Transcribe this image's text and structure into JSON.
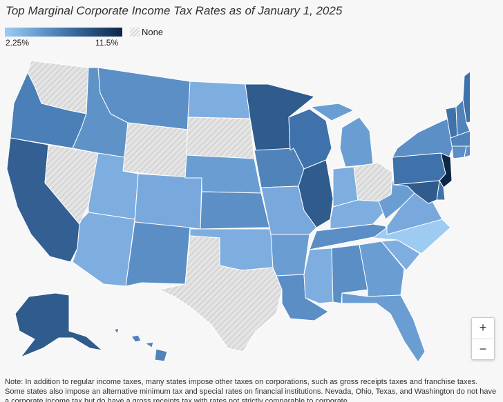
{
  "title": "Top Marginal Corporate Income Tax Rates as of January 1, 2025",
  "legend": {
    "min_label": "2.25%",
    "max_label": "11.5%",
    "none_label": "None",
    "min_rate": 2.25,
    "max_rate": 11.5,
    "colors": [
      "#9ecbf2",
      "#5f93c8",
      "#2f5b8d",
      "#0d2747"
    ],
    "none_color": "#dcdcdc"
  },
  "zoom": {
    "in_label": "+",
    "out_label": "−"
  },
  "note": "Note: In addition to regular income taxes, many states impose other taxes on corporations, such as gross receipts taxes and franchise taxes. Some states also impose an alternative minimum tax and special rates on financial institutions. Nevada, Ohio, Texas, and Washington do not have a corporate income tax but do have a gross receipts tax with rates not strictly comparable to corporate",
  "map_data": {
    "states": [
      {
        "id": "WA",
        "shade": "none"
      },
      {
        "id": "OR",
        "shade": "#4a7fb7"
      },
      {
        "id": "CA",
        "shade": "#335f92"
      },
      {
        "id": "NV",
        "shade": "none"
      },
      {
        "id": "ID",
        "shade": "#5f93c8"
      },
      {
        "id": "MT",
        "shade": "#5b8fc6"
      },
      {
        "id": "WY",
        "shade": "none"
      },
      {
        "id": "UT",
        "shade": "#7eaedf"
      },
      {
        "id": "AZ",
        "shade": "#7eaedf"
      },
      {
        "id": "CO",
        "shade": "#79a9dc"
      },
      {
        "id": "NM",
        "shade": "#5a8ec5"
      },
      {
        "id": "ND",
        "shade": "#7eaedf"
      },
      {
        "id": "SD",
        "shade": "none"
      },
      {
        "id": "NE",
        "shade": "#6a9ed3"
      },
      {
        "id": "KS",
        "shade": "#5b8fc6"
      },
      {
        "id": "OK",
        "shade": "#7eaedf"
      },
      {
        "id": "TX",
        "shade": "none"
      },
      {
        "id": "MN",
        "shade": "#2f5b8d"
      },
      {
        "id": "IA",
        "shade": "#4f83ba"
      },
      {
        "id": "MO",
        "shade": "#79a9dc"
      },
      {
        "id": "AR",
        "shade": "#6a9ed3"
      },
      {
        "id": "LA",
        "shade": "#5a8ec5"
      },
      {
        "id": "WI",
        "shade": "#3f72aa"
      },
      {
        "id": "IL",
        "shade": "#2f5b8d"
      },
      {
        "id": "MI",
        "shade": "#6a9ed3"
      },
      {
        "id": "IN",
        "shade": "#7eaedf"
      },
      {
        "id": "OH",
        "shade": "none"
      },
      {
        "id": "KY",
        "shade": "#7eaedf"
      },
      {
        "id": "TN",
        "shade": "#5a8ec5"
      },
      {
        "id": "MS",
        "shade": "#7eaedf"
      },
      {
        "id": "AL",
        "shade": "#5a8ec5"
      },
      {
        "id": "GA",
        "shade": "#6a9ed3"
      },
      {
        "id": "FL",
        "shade": "#6a9ed3"
      },
      {
        "id": "SC",
        "shade": "#7eaedf"
      },
      {
        "id": "NC",
        "shade": "#9ecbf2"
      },
      {
        "id": "VA",
        "shade": "#79a9dc"
      },
      {
        "id": "WV",
        "shade": "#6a9ed3"
      },
      {
        "id": "PA",
        "shade": "#3f72aa"
      },
      {
        "id": "NY",
        "shade": "#5b8fc6"
      },
      {
        "id": "ME",
        "shade": "#3f72aa"
      },
      {
        "id": "VT",
        "shade": "#3f72aa"
      },
      {
        "id": "NH",
        "shade": "#4f83ba"
      },
      {
        "id": "MA",
        "shade": "#4f83ba"
      },
      {
        "id": "CT",
        "shade": "#5b8fc6"
      },
      {
        "id": "RI",
        "shade": "#5b8fc6"
      },
      {
        "id": "NJ",
        "shade": "#0d2747"
      },
      {
        "id": "DE",
        "shade": "#3f72aa"
      },
      {
        "id": "MD",
        "shade": "#2f5b8d"
      },
      {
        "id": "AK",
        "shade": "#2f5b8d"
      },
      {
        "id": "HI",
        "shade": "#4f83ba"
      }
    ]
  }
}
